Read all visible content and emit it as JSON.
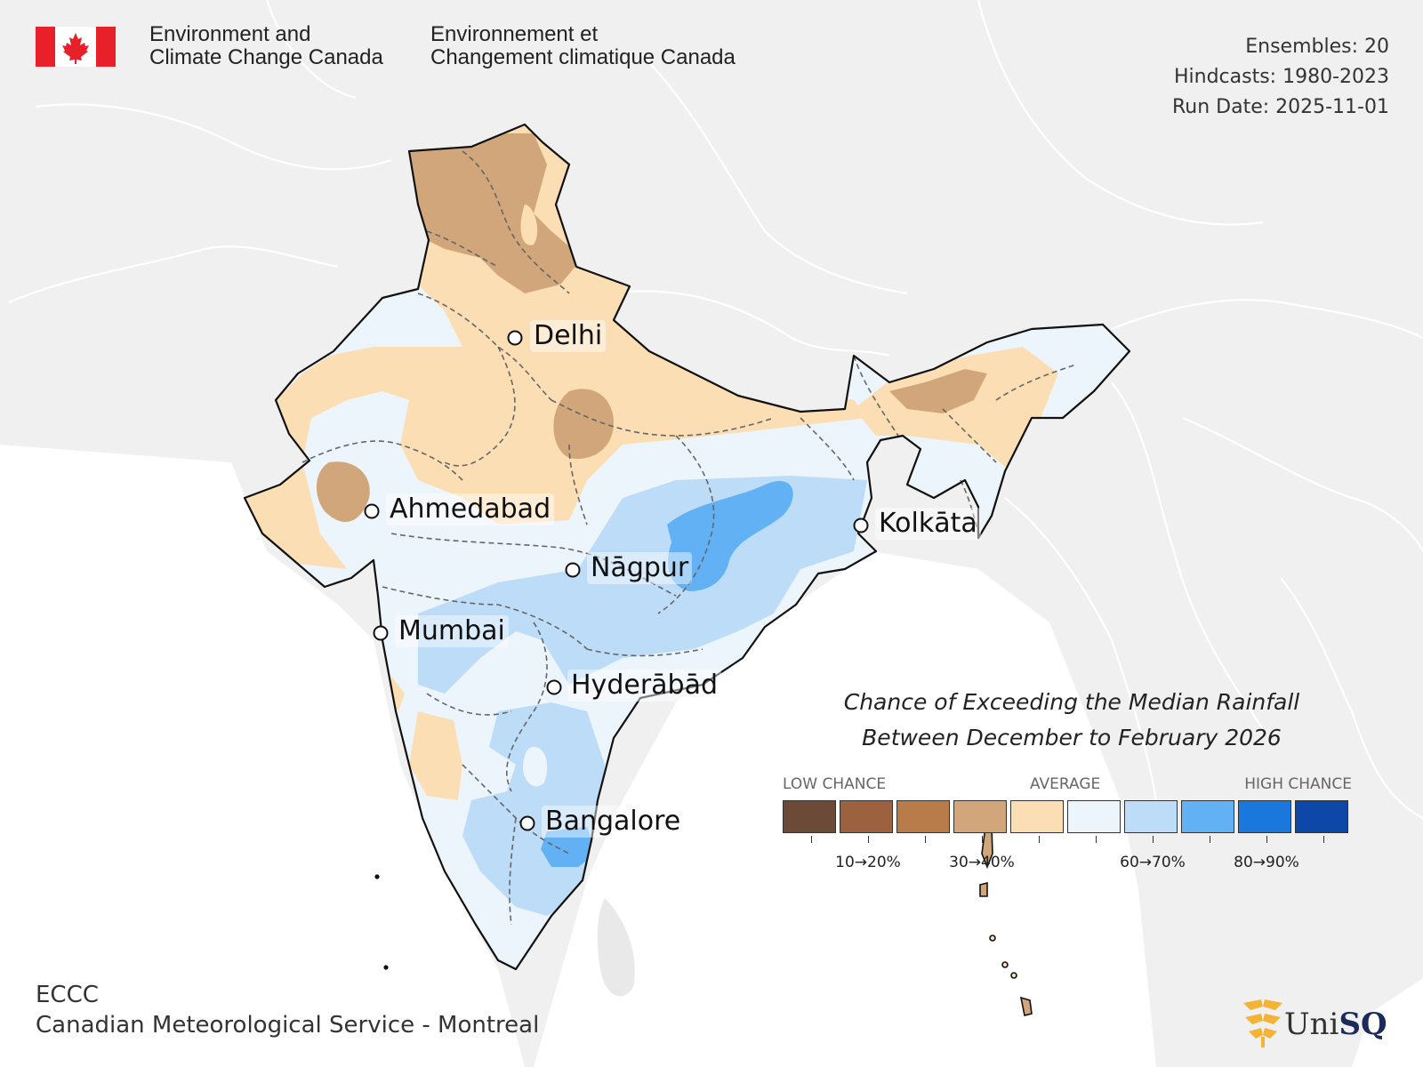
{
  "header": {
    "agency_en_line1": "Environment and",
    "agency_en_line2": "Climate Change Canada",
    "agency_fr_line1": "Environnement et",
    "agency_fr_line2": "Changement climatique Canada"
  },
  "meta": {
    "ensembles": "Ensembles: 20",
    "hindcasts": "Hindcasts: 1980-2023",
    "run_date": "Run Date: 2025-11-01"
  },
  "title": {
    "line1": "Chance of Exceeding the Median Rainfall",
    "line2": "Between December to February 2026"
  },
  "legend": {
    "low_label": "LOW CHANCE",
    "avg_label": "AVERAGE",
    "high_label": "HIGH CHANCE",
    "colors": [
      "#6b4a38",
      "#9c613e",
      "#b87c4a",
      "#d1a67b",
      "#fbdeb4",
      "#edf5fc",
      "#bcdcf8",
      "#62b1f5",
      "#1a78dc",
      "#0d48a8"
    ],
    "tick_labels": [
      "10→20%",
      "30→40%",
      "60→70%",
      "80→90%"
    ]
  },
  "cities": {
    "delhi": "Delhi",
    "ahmedabad": "Ahmedabad",
    "kolkata": "Kolkāta",
    "nagpur": "Nāgpur",
    "mumbai": "Mumbai",
    "hyderabad": "Hyderābād",
    "bangalore": "Bangalore"
  },
  "footer": {
    "line1": "ECCC",
    "line2": "Canadian Meteorological Service - Montreal"
  },
  "logo": {
    "text_prefix": "Uni",
    "text_suffix": "SQ"
  }
}
